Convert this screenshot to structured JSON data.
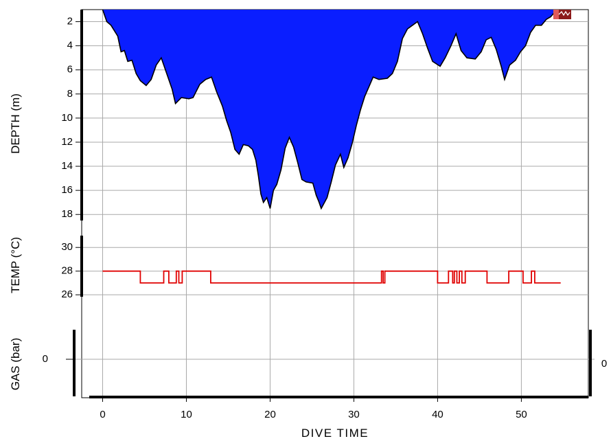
{
  "colors": {
    "depth_fill": "#0a1eff",
    "depth_outline": "#000000",
    "temp_line": "#e00000",
    "grid": "#a9a9a9",
    "axis": "#000000",
    "marker": "#8b1a1a"
  },
  "axes": {
    "x_title": "DIVE TIME",
    "depth_title": "DEPTH (m)",
    "temp_title": "TEMP (°C)",
    "gas_title": "GAS (bar)",
    "gas_right_label": "0"
  },
  "chart_data": {
    "type": "area",
    "x": {
      "label": "DIVE TIME",
      "ticks": [
        0,
        10,
        20,
        30,
        40,
        50
      ],
      "range": [
        -2.5,
        58
      ]
    },
    "depth": {
      "label": "DEPTH (m)",
      "ticks": [
        2,
        4,
        6,
        8,
        10,
        12,
        14,
        16,
        18
      ],
      "range": [
        1,
        18.5
      ],
      "inverted": true,
      "points": [
        [
          0,
          1
        ],
        [
          0.5,
          2
        ],
        [
          1,
          2.3
        ],
        [
          1.8,
          3.2
        ],
        [
          2.2,
          4.5
        ],
        [
          2.6,
          4.4
        ],
        [
          3,
          5.3
        ],
        [
          3.5,
          5.2
        ],
        [
          4,
          6.3
        ],
        [
          4.5,
          6.9
        ],
        [
          5.2,
          7.3
        ],
        [
          5.8,
          6.8
        ],
        [
          6.4,
          5.6
        ],
        [
          7,
          5.0
        ],
        [
          7.6,
          6.2
        ],
        [
          8.3,
          7.6
        ],
        [
          8.7,
          8.8
        ],
        [
          9.4,
          8.3
        ],
        [
          10.3,
          8.4
        ],
        [
          10.8,
          8.3
        ],
        [
          11.6,
          7.2
        ],
        [
          12.3,
          6.8
        ],
        [
          13,
          6.6
        ],
        [
          13.6,
          7.8
        ],
        [
          14.3,
          9.0
        ],
        [
          14.8,
          10.2
        ],
        [
          15.3,
          11.2
        ],
        [
          15.8,
          12.6
        ],
        [
          16.3,
          13.0
        ],
        [
          16.8,
          12.2
        ],
        [
          17.4,
          12.3
        ],
        [
          17.9,
          12.6
        ],
        [
          18.3,
          13.5
        ],
        [
          18.6,
          14.8
        ],
        [
          18.9,
          16.3
        ],
        [
          19.2,
          17.0
        ],
        [
          19.6,
          16.6
        ],
        [
          20,
          17.5
        ],
        [
          20.4,
          16.0
        ],
        [
          20.8,
          15.5
        ],
        [
          21.3,
          14.3
        ],
        [
          21.8,
          12.5
        ],
        [
          22.3,
          11.6
        ],
        [
          22.8,
          12.4
        ],
        [
          23.3,
          13.7
        ],
        [
          23.8,
          15.1
        ],
        [
          24.3,
          15.3
        ],
        [
          25.1,
          15.4
        ],
        [
          25.5,
          16.4
        ],
        [
          25.8,
          16.9
        ],
        [
          26.1,
          17.5
        ],
        [
          26.8,
          16.6
        ],
        [
          27.3,
          15.3
        ],
        [
          27.8,
          13.9
        ],
        [
          28.4,
          13.0
        ],
        [
          28.8,
          14.1
        ],
        [
          29.3,
          13.3
        ],
        [
          29.8,
          12.1
        ],
        [
          30.3,
          10.6
        ],
        [
          30.8,
          9.3
        ],
        [
          31.3,
          8.2
        ],
        [
          31.8,
          7.4
        ],
        [
          32.3,
          6.6
        ],
        [
          33,
          6.8
        ],
        [
          34,
          6.7
        ],
        [
          34.6,
          6.3
        ],
        [
          35.2,
          5.3
        ],
        [
          35.8,
          3.4
        ],
        [
          36.4,
          2.6
        ],
        [
          37,
          2.3
        ],
        [
          37.6,
          2.0
        ],
        [
          38.2,
          3.0
        ],
        [
          38.8,
          4.2
        ],
        [
          39.4,
          5.3
        ],
        [
          40.3,
          5.7
        ],
        [
          40.9,
          5.0
        ],
        [
          41.6,
          4.0
        ],
        [
          42.2,
          3.0
        ],
        [
          42.8,
          4.4
        ],
        [
          43.5,
          5.0
        ],
        [
          44.5,
          5.1
        ],
        [
          45.2,
          4.5
        ],
        [
          45.8,
          3.5
        ],
        [
          46.4,
          3.3
        ],
        [
          47,
          4.3
        ],
        [
          47.6,
          5.7
        ],
        [
          48,
          6.8
        ],
        [
          48.6,
          5.6
        ],
        [
          49.3,
          5.2
        ],
        [
          49.9,
          4.5
        ],
        [
          50.5,
          4.0
        ],
        [
          51.1,
          2.9
        ],
        [
          51.7,
          2.3
        ],
        [
          52.4,
          2.3
        ],
        [
          53,
          1.8
        ],
        [
          53.5,
          1.6
        ],
        [
          54,
          1.2
        ],
        [
          54.2,
          1.0
        ]
      ]
    },
    "temperature": {
      "label": "TEMP (°C)",
      "ticks": [
        26,
        28,
        30
      ],
      "range": [
        24.5,
        31
      ],
      "points": [
        [
          0,
          28
        ],
        [
          4.5,
          28
        ],
        [
          4.5,
          27
        ],
        [
          7.3,
          27
        ],
        [
          7.3,
          28
        ],
        [
          7.9,
          28
        ],
        [
          7.9,
          27
        ],
        [
          8.8,
          27
        ],
        [
          8.8,
          28
        ],
        [
          9.1,
          28
        ],
        [
          9.1,
          27
        ],
        [
          9.5,
          27
        ],
        [
          9.5,
          28
        ],
        [
          12.9,
          28
        ],
        [
          12.9,
          27
        ],
        [
          33.3,
          27
        ],
        [
          33.3,
          28
        ],
        [
          33.5,
          28
        ],
        [
          33.5,
          27
        ],
        [
          33.7,
          27
        ],
        [
          33.7,
          28
        ],
        [
          40,
          28
        ],
        [
          40,
          27
        ],
        [
          41.3,
          27
        ],
        [
          41.3,
          28
        ],
        [
          41.8,
          28
        ],
        [
          41.8,
          27
        ],
        [
          42,
          27
        ],
        [
          42,
          28
        ],
        [
          42.3,
          28
        ],
        [
          42.3,
          27
        ],
        [
          42.6,
          27
        ],
        [
          42.6,
          28
        ],
        [
          42.9,
          28
        ],
        [
          42.9,
          27
        ],
        [
          43.3,
          27
        ],
        [
          43.3,
          28
        ],
        [
          45.9,
          28
        ],
        [
          45.9,
          27
        ],
        [
          48.5,
          27
        ],
        [
          48.5,
          28
        ],
        [
          50.2,
          28
        ],
        [
          50.2,
          27
        ],
        [
          51.2,
          27
        ],
        [
          51.2,
          28
        ],
        [
          51.6,
          28
        ],
        [
          51.6,
          27
        ],
        [
          54.7,
          27
        ]
      ]
    },
    "gas": {
      "label": "GAS (bar)",
      "ticks": [
        0
      ],
      "right_ticks": [
        0
      ]
    }
  }
}
